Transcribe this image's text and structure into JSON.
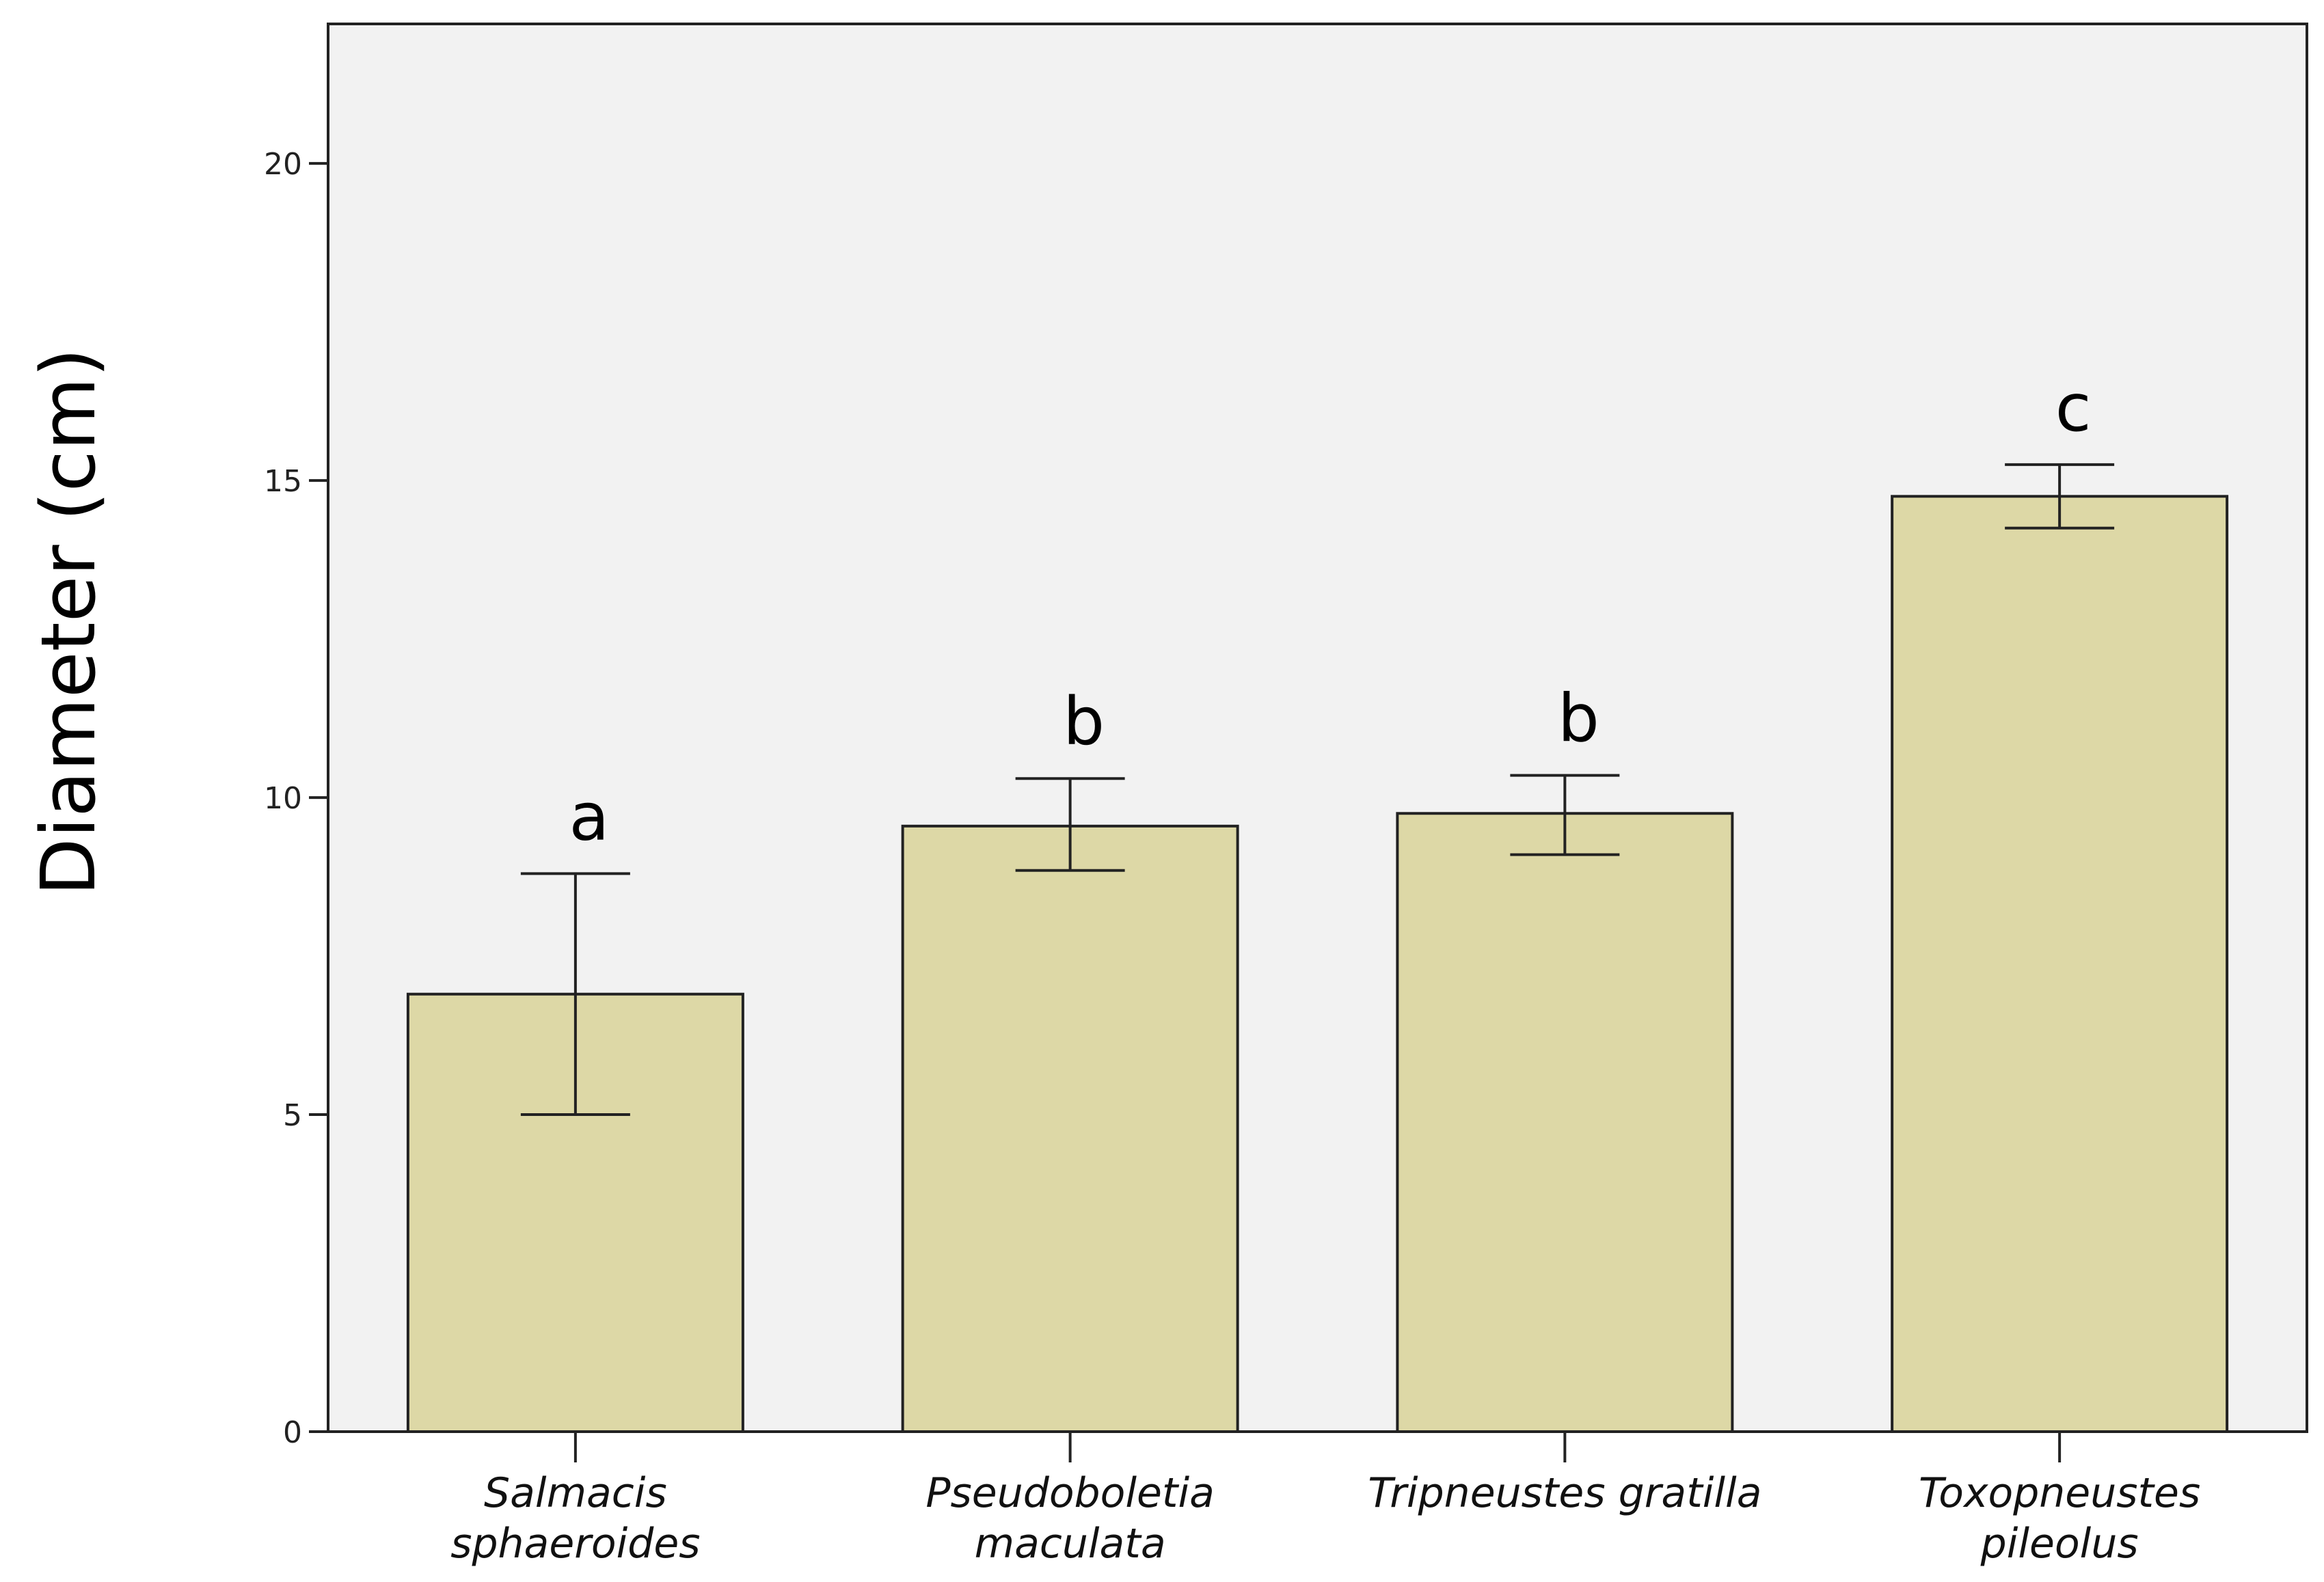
{
  "chart_data": {
    "type": "bar",
    "title": "",
    "xlabel": "",
    "ylabel": "Diameter (cm)",
    "ylim": [
      0,
      22.2
    ],
    "yticks": [
      0,
      5,
      10,
      15,
      20
    ],
    "grid": false,
    "categories": [
      [
        "Salmacis",
        "sphaeroides"
      ],
      [
        "Pseudoboletia",
        "maculata"
      ],
      [
        "Tripneustes gratilla"
      ],
      [
        "Toxopneustes",
        "pileolus"
      ]
    ],
    "values": [
      6.9,
      9.55,
      9.75,
      14.75
    ],
    "error_low": [
      5.0,
      8.85,
      9.1,
      14.25
    ],
    "error_high": [
      8.8,
      10.3,
      10.35,
      15.25
    ],
    "significance_letters": [
      "a",
      "b",
      "b",
      "c"
    ],
    "colors": {
      "bar_fill": "#ddd8a6",
      "bar_stroke": "#222222",
      "plot_background": "#f2f2f2",
      "axis": "#222222"
    }
  }
}
